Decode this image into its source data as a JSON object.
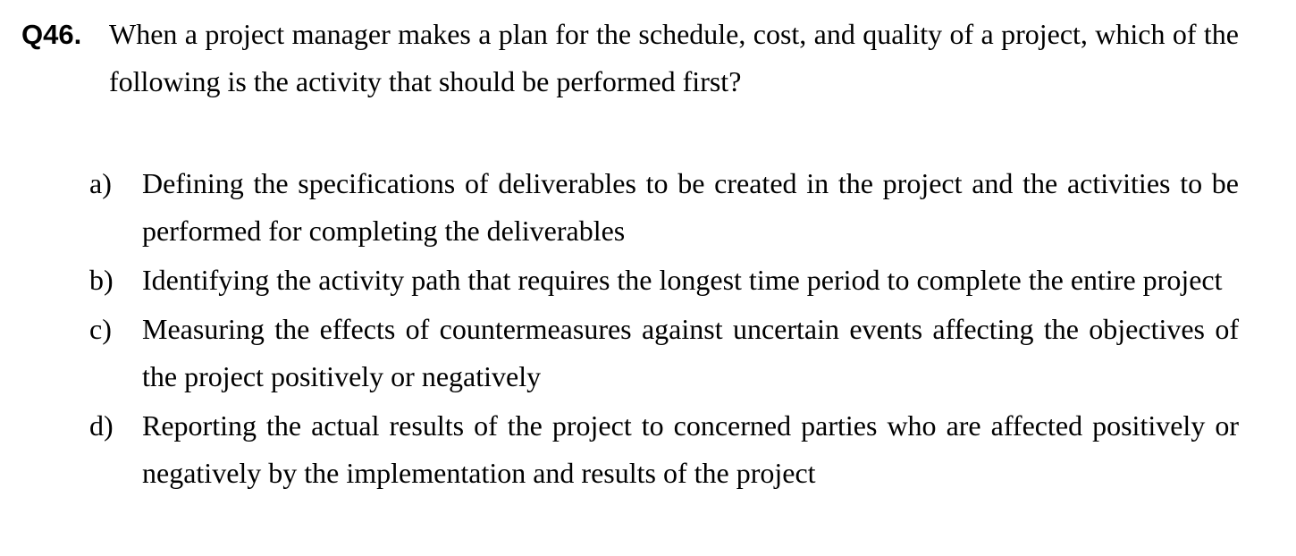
{
  "question": {
    "number": "Q46.",
    "text": "When a project manager makes a plan for the schedule, cost, and quality of a project, which of the following is the activity that should be performed first?"
  },
  "options": [
    {
      "label": "a)",
      "text": "Defining the specifications of deliverables to be created in the project and the activities to be performed for completing the deliverables"
    },
    {
      "label": "b)",
      "text": "Identifying the activity path that requires the longest time period to complete the entire project"
    },
    {
      "label": "c)",
      "text": "Measuring the effects of countermeasures against uncertain events affecting the objectives of the project positively or negatively"
    },
    {
      "label": "d)",
      "text": "Reporting the actual results of the project to concerned parties who are affected positively or negatively by the implementation and results of the project"
    }
  ]
}
